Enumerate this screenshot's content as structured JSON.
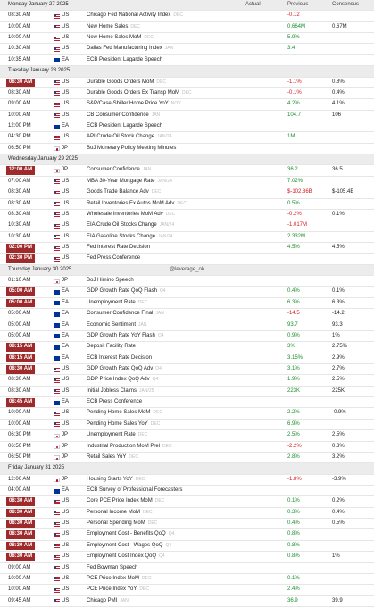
{
  "columns": {
    "actual": "Actual",
    "previous": "Previous",
    "consensus": "Consensus"
  },
  "watermark": "@leverage_ok",
  "days": [
    {
      "date": "Monday January 27 2025",
      "events": [
        {
          "time": "08:30 AM",
          "country": "US",
          "event": "Chicago Fed National Activity Index",
          "period": "DEC",
          "previous": "-0.12"
        },
        {
          "time": "10:00 AM",
          "country": "US",
          "event": "New Home Sales",
          "period": "DEC",
          "previous": "0.664M",
          "consensus": "0.67M"
        },
        {
          "time": "10:00 AM",
          "country": "US",
          "event": "New Home Sales MoM",
          "period": "DEC",
          "previous": "5.9%"
        },
        {
          "time": "10:30 AM",
          "country": "US",
          "event": "Dallas Fed Manufacturing Index",
          "period": "JAN",
          "previous": "3.4"
        },
        {
          "time": "10:35 AM",
          "country": "EA",
          "event": "ECB President Lagarde Speech"
        }
      ]
    },
    {
      "date": "Tuesday January 28 2025",
      "events": [
        {
          "time": "08:30 AM",
          "highlight": true,
          "country": "US",
          "event": "Durable Goods Orders MoM",
          "period": "DEC",
          "previous": "-1.1%",
          "consensus": "0.8%"
        },
        {
          "time": "08:30 AM",
          "country": "US",
          "event": "Durable Goods Orders Ex Transp MoM",
          "period": "DEC",
          "previous": "-0.1%",
          "consensus": "0.4%"
        },
        {
          "time": "09:00 AM",
          "country": "US",
          "event": "S&P/Case-Shiller Home Price YoY",
          "period": "NOV",
          "previous": "4.2%",
          "consensus": "4.1%"
        },
        {
          "time": "10:00 AM",
          "country": "US",
          "event": "CB Consumer Confidence",
          "period": "JAN",
          "previous": "104.7",
          "consensus": "106"
        },
        {
          "time": "12:00 PM",
          "country": "EA",
          "event": "ECB President Lagarde Speech"
        },
        {
          "time": "04:30 PM",
          "country": "US",
          "event": "API Crude Oil Stock Change",
          "period": "JAN/24",
          "previous": "1M"
        },
        {
          "time": "06:50 PM",
          "country": "JP",
          "event": "BoJ Monetary Policy Meeting Minutes"
        }
      ]
    },
    {
      "date": "Wednesday January 29 2025",
      "events": [
        {
          "time": "12:00 AM",
          "highlight": true,
          "country": "JP",
          "event": "Consumer Confidence",
          "period": "JAN",
          "previous": "36.2",
          "consensus": "36.5"
        },
        {
          "time": "07:00 AM",
          "country": "US",
          "event": "MBA 30-Year Mortgage Rate",
          "period": "JAN/24",
          "previous": "7.02%"
        },
        {
          "time": "08:30 AM",
          "country": "US",
          "event": "Goods Trade Balance Adv",
          "period": "DEC",
          "previous": "$-102.86B",
          "consensus": "$-105.4B"
        },
        {
          "time": "08:30 AM",
          "country": "US",
          "event": "Retail Inventories Ex Autos MoM Adv",
          "period": "DEC",
          "previous": "0.5%"
        },
        {
          "time": "08:30 AM",
          "country": "US",
          "event": "Wholesale Inventories MoM Adv",
          "period": "DEC",
          "previous": "-0.2%",
          "consensus": "0.1%"
        },
        {
          "time": "10:30 AM",
          "country": "US",
          "event": "EIA Crude Oil Stocks Change",
          "period": "JAN/24",
          "previous": "-1.017M"
        },
        {
          "time": "10:30 AM",
          "country": "US",
          "event": "EIA Gasoline Stocks Change",
          "period": "JAN/24",
          "previous": "2.332M"
        },
        {
          "time": "02:00 PM",
          "highlight": true,
          "country": "US",
          "event": "Fed Interest Rate Decision",
          "previous": "4.5%",
          "consensus": "4.5%"
        },
        {
          "time": "02:30 PM",
          "highlight": true,
          "country": "US",
          "event": "Fed Press Conference"
        }
      ]
    },
    {
      "date": "Thursday January 30 2025",
      "events": [
        {
          "time": "01:10 AM",
          "country": "JP",
          "event": "BoJ Himino Speech"
        },
        {
          "time": "05:00 AM",
          "highlight": true,
          "country": "EA",
          "event": "GDP Growth Rate QoQ Flash",
          "period": "Q4",
          "previous": "0.4%",
          "consensus": "0.1%"
        },
        {
          "time": "05:00 AM",
          "highlight": true,
          "country": "EA",
          "event": "Unemployment Rate",
          "period": "DEC",
          "previous": "6.3%",
          "consensus": "6.3%"
        },
        {
          "time": "05:00 AM",
          "country": "EA",
          "event": "Consumer Confidence Final",
          "period": "JAN",
          "previous": "-14.5",
          "consensus": "-14.2"
        },
        {
          "time": "05:00 AM",
          "country": "EA",
          "event": "Economic Sentiment",
          "period": "JAN",
          "previous": "93.7",
          "consensus": "93.3"
        },
        {
          "time": "05:00 AM",
          "country": "EA",
          "event": "GDP Growth Rate YoY Flash",
          "period": "Q4",
          "previous": "0.9%",
          "consensus": "1%"
        },
        {
          "time": "08:15 AM",
          "highlight": true,
          "country": "EA",
          "event": "Deposit Facility Rate",
          "previous": "3%",
          "consensus": "2.75%"
        },
        {
          "time": "08:15 AM",
          "highlight": true,
          "country": "EA",
          "event": "ECB Interest Rate Decision",
          "previous": "3.15%",
          "consensus": "2.9%"
        },
        {
          "time": "08:30 AM",
          "highlight": true,
          "country": "US",
          "event": "GDP Growth Rate QoQ Adv",
          "period": "Q4",
          "previous": "3.1%",
          "consensus": "2.7%"
        },
        {
          "time": "08:30 AM",
          "country": "US",
          "event": "GDP Price Index QoQ Adv",
          "period": "Q4",
          "previous": "1.9%",
          "consensus": "2.5%"
        },
        {
          "time": "08:30 AM",
          "country": "US",
          "event": "Initial Jobless Claims",
          "period": "JAN/25",
          "previous": "223K",
          "consensus": "225K"
        },
        {
          "time": "08:45 AM",
          "highlight": true,
          "country": "EA",
          "event": "ECB Press Conference"
        },
        {
          "time": "10:00 AM",
          "country": "US",
          "event": "Pending Home Sales MoM",
          "period": "DEC",
          "previous": "2.2%",
          "consensus": "-0.9%"
        },
        {
          "time": "10:00 AM",
          "country": "US",
          "event": "Pending Home Sales YoY",
          "period": "DEC",
          "previous": "6.9%"
        },
        {
          "time": "06:30 PM",
          "country": "JP",
          "event": "Unemployment Rate",
          "period": "DEC",
          "previous": "2.5%",
          "consensus": "2.5%"
        },
        {
          "time": "06:50 PM",
          "country": "JP",
          "event": "Industrial Production MoM Prel",
          "period": "DEC",
          "previous": "-2.2%",
          "consensus": "0.3%"
        },
        {
          "time": "06:50 PM",
          "country": "JP",
          "event": "Retail Sales YoY",
          "period": "DEC",
          "previous": "2.8%",
          "consensus": "3.2%"
        }
      ]
    },
    {
      "date": "Friday January 31 2025",
      "events": [
        {
          "time": "12:00 AM",
          "country": "JP",
          "event": "Housing Starts YoY",
          "period": "DEC",
          "previous": "-1.8%",
          "consensus": "-3.9%"
        },
        {
          "time": "04:00 AM",
          "country": "EA",
          "event": "ECB Survey of Professional Forecasters"
        },
        {
          "time": "08:30 AM",
          "highlight": true,
          "country": "US",
          "event": "Core PCE Price Index MoM",
          "period": "DEC",
          "previous": "0.1%",
          "consensus": "0.2%"
        },
        {
          "time": "08:30 AM",
          "highlight": true,
          "country": "US",
          "event": "Personal Income MoM",
          "period": "DEC",
          "previous": "0.3%",
          "consensus": "0.4%"
        },
        {
          "time": "08:30 AM",
          "highlight": true,
          "country": "US",
          "event": "Personal Spending MoM",
          "period": "DEC",
          "previous": "0.4%",
          "consensus": "0.5%"
        },
        {
          "time": "08:30 AM",
          "highlight": true,
          "country": "US",
          "event": "Employment Cost - Benefits QoQ",
          "period": "Q4",
          "previous": "0.8%"
        },
        {
          "time": "08:30 AM",
          "highlight": true,
          "country": "US",
          "event": "Employment Cost - Wages QoQ",
          "period": "Q4",
          "previous": "0.8%"
        },
        {
          "time": "08:30 AM",
          "highlight": true,
          "country": "US",
          "event": "Employment Cost Index QoQ",
          "period": "Q4",
          "previous": "0.8%",
          "consensus": "1%"
        },
        {
          "time": "09:00 AM",
          "country": "US",
          "event": "Fed Bowman Speech"
        },
        {
          "time": "10:00 AM",
          "country": "US",
          "event": "PCE Price Index MoM",
          "period": "DEC",
          "previous": "0.1%"
        },
        {
          "time": "10:00 AM",
          "country": "US",
          "event": "PCE Price Index YoY",
          "period": "DEC",
          "previous": "2.4%"
        },
        {
          "time": "09:45 AM",
          "country": "US",
          "event": "Chicago PMI",
          "period": "JAN",
          "previous": "36.9",
          "consensus": "39.9"
        }
      ]
    }
  ]
}
